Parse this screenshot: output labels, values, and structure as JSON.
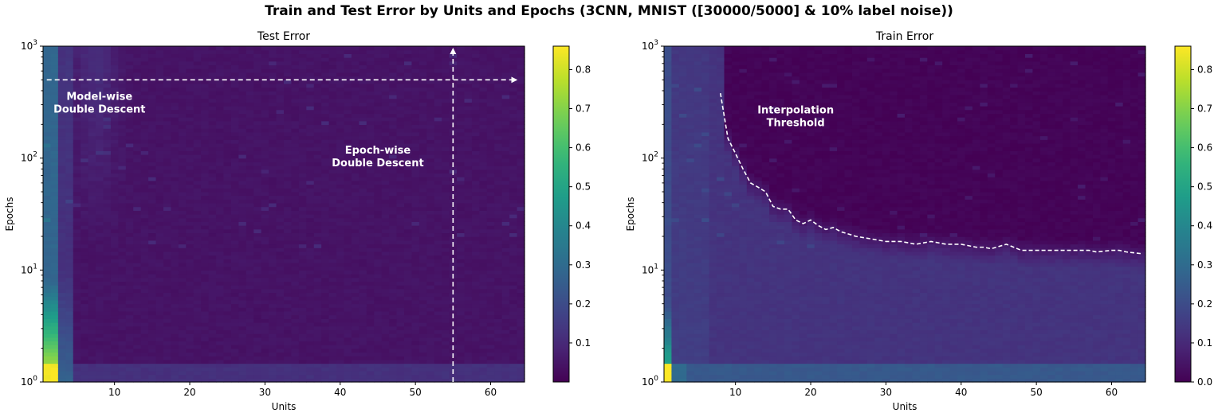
{
  "figure": {
    "title": "Train and Test Error by Units and Epochs (3CNN, MNIST ([30000/5000] & 10% label noise))"
  },
  "chart_data": [
    {
      "type": "heatmap",
      "title": "Test Error",
      "xlabel": "Units",
      "ylabel": "Epochs",
      "x_range": [
        1,
        64
      ],
      "y_range": [
        1,
        1000
      ],
      "y_scale": "log",
      "x_ticks": [
        10,
        20,
        30,
        40,
        50,
        60
      ],
      "y_ticks": [
        {
          "value": 1,
          "base": "10",
          "exp": "0"
        },
        {
          "value": 10,
          "base": "10",
          "exp": "1"
        },
        {
          "value": 100,
          "base": "10",
          "exp": "2"
        },
        {
          "value": 1000,
          "base": "10",
          "exp": "3"
        }
      ],
      "colormap": "viridis",
      "color_range": [
        0.0,
        0.86
      ],
      "colorbar_ticks": [
        "0.1",
        "0.2",
        "0.3",
        "0.4",
        "0.5",
        "0.6",
        "0.7",
        "0.8"
      ],
      "colorbar_tick_values": [
        0.1,
        0.2,
        0.3,
        0.4,
        0.5,
        0.6,
        0.7,
        0.8
      ],
      "annotations": [
        {
          "text": [
            "Model-wise",
            "Double Descent"
          ],
          "x": 8,
          "y": 330
        },
        {
          "text": [
            "Epoch-wise",
            "Double Descent"
          ],
          "x": 45,
          "y": 110
        }
      ],
      "arrows": [
        {
          "from": [
            1,
            500
          ],
          "to": [
            64,
            500
          ]
        },
        {
          "from": [
            55,
            1
          ],
          "to": [
            55,
            1000
          ]
        }
      ]
    },
    {
      "type": "heatmap",
      "title": "Train Error",
      "xlabel": "Units",
      "ylabel": "Epochs",
      "x_range": [
        1,
        64
      ],
      "y_range": [
        1,
        1000
      ],
      "y_scale": "log",
      "x_ticks": [
        10,
        20,
        30,
        40,
        50,
        60
      ],
      "y_ticks": [
        {
          "value": 1,
          "base": "10",
          "exp": "0"
        },
        {
          "value": 10,
          "base": "10",
          "exp": "1"
        },
        {
          "value": 100,
          "base": "10",
          "exp": "2"
        },
        {
          "value": 1000,
          "base": "10",
          "exp": "3"
        }
      ],
      "colormap": "viridis",
      "color_range": [
        0.0,
        0.86
      ],
      "colorbar_ticks": [
        "0.0",
        "0.1",
        "0.2",
        "0.3",
        "0.4",
        "0.5",
        "0.6",
        "0.7",
        "0.8"
      ],
      "colorbar_tick_values": [
        0.0,
        0.1,
        0.2,
        0.3,
        0.4,
        0.5,
        0.6,
        0.7,
        0.8
      ],
      "annotations": [
        {
          "text": [
            "Interpolation",
            "Threshold"
          ],
          "x": 18,
          "y": 250
        }
      ],
      "threshold_line": {
        "units": [
          8,
          9,
          10,
          11,
          12,
          13,
          14,
          15,
          16,
          17,
          18,
          19,
          20,
          21,
          22,
          23,
          24,
          25,
          26,
          28,
          30,
          32,
          34,
          36,
          38,
          40,
          42,
          43,
          44,
          46,
          48,
          50,
          52,
          54,
          56,
          57,
          58,
          60,
          61,
          62,
          64
        ],
        "epochs": [
          380,
          150,
          110,
          80,
          60,
          55,
          50,
          37,
          35,
          35,
          28,
          26,
          28,
          25,
          23,
          24,
          22,
          21,
          20,
          19,
          18,
          18,
          17,
          18,
          17,
          17,
          16,
          16,
          15.5,
          17,
          15,
          15,
          15,
          15,
          15,
          15,
          14.5,
          15,
          15,
          14.5,
          14
        ]
      }
    }
  ]
}
